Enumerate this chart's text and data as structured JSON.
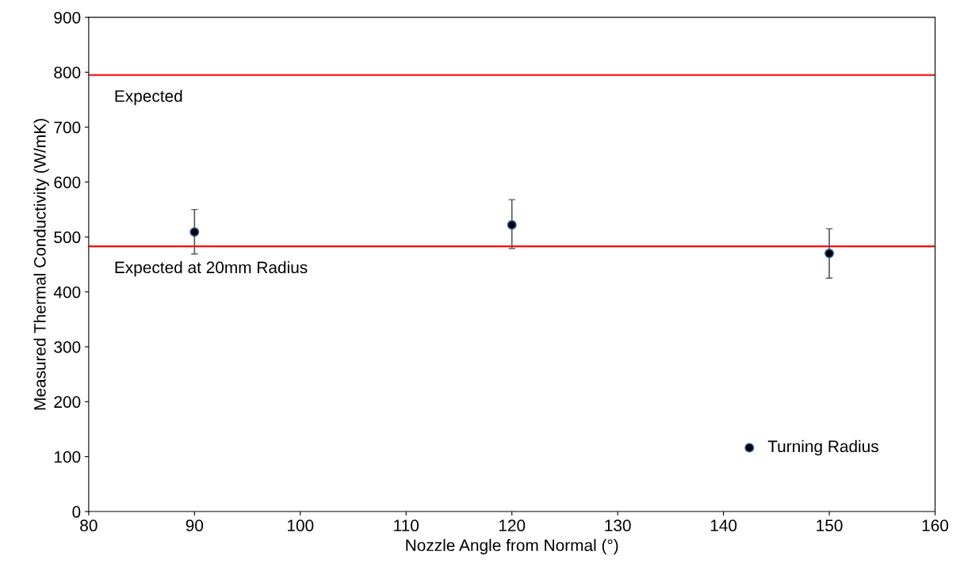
{
  "chart_data": {
    "type": "scatter",
    "xlabel": "Nozzle Angle from Normal (°)",
    "ylabel": "Measured Thermal Conductivity (W/mK)",
    "x": [
      90,
      120,
      150
    ],
    "series": [
      {
        "name": "Turning Radius",
        "color": "#000000",
        "values": [
          509,
          522,
          470
        ],
        "errors": [
          [
            469,
            550
          ],
          [
            479,
            568
          ],
          [
            425,
            515
          ]
        ]
      }
    ],
    "xlim": [
      80,
      160
    ],
    "xticks": [
      80,
      90,
      100,
      110,
      120,
      130,
      140,
      150,
      160
    ],
    "ylim": [
      0,
      900
    ],
    "yticks": [
      0,
      100,
      200,
      300,
      400,
      500,
      600,
      700,
      800,
      900
    ],
    "ref_lines": [
      {
        "axis": "y",
        "value": 795,
        "label": "Expected",
        "color": "#ff0000"
      },
      {
        "axis": "y",
        "value": 483,
        "label": "Expected at 20mm Radius",
        "color": "#ff0000"
      }
    ],
    "marker": "circle",
    "grid": false,
    "legend": "bottom right"
  }
}
